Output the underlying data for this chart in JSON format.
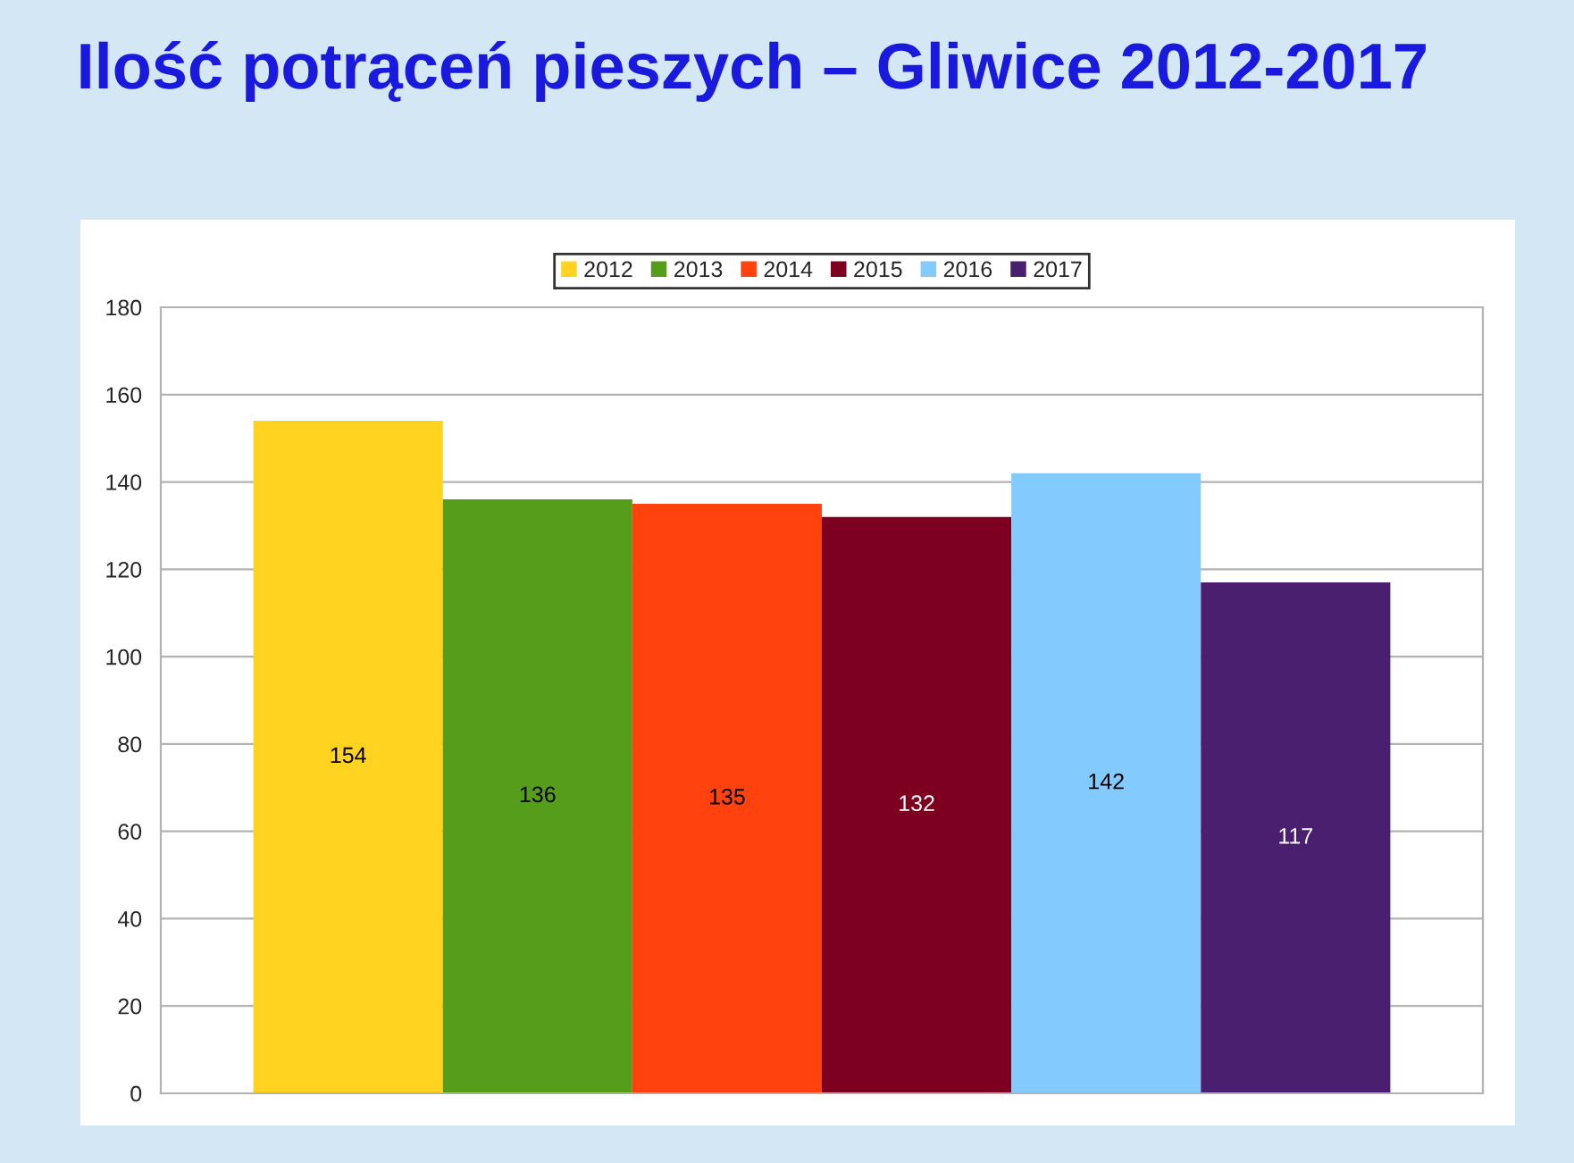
{
  "chart_data": {
    "type": "bar",
    "title": "Ilość potrąceń pieszych – Gliwice 2012-2017",
    "categories": [
      null
    ],
    "series": [
      {
        "name": "2012",
        "color": "#ffd320",
        "values": [
          154
        ]
      },
      {
        "name": "2013",
        "color": "#579d1c",
        "values": [
          136
        ]
      },
      {
        "name": "2014",
        "color": "#ff420e",
        "values": [
          135
        ]
      },
      {
        "name": "2015",
        "color": "#7e0021",
        "values": [
          132
        ]
      },
      {
        "name": "2016",
        "color": "#83caff",
        "values": [
          142
        ]
      },
      {
        "name": "2017",
        "color": "#4b1f6f",
        "values": [
          117
        ]
      }
    ],
    "ylim": [
      0,
      180
    ],
    "yticks": [
      0,
      20,
      40,
      60,
      80,
      100,
      120,
      140,
      160,
      180
    ],
    "grid": "y",
    "legend": "top",
    "data_labels": true
  }
}
